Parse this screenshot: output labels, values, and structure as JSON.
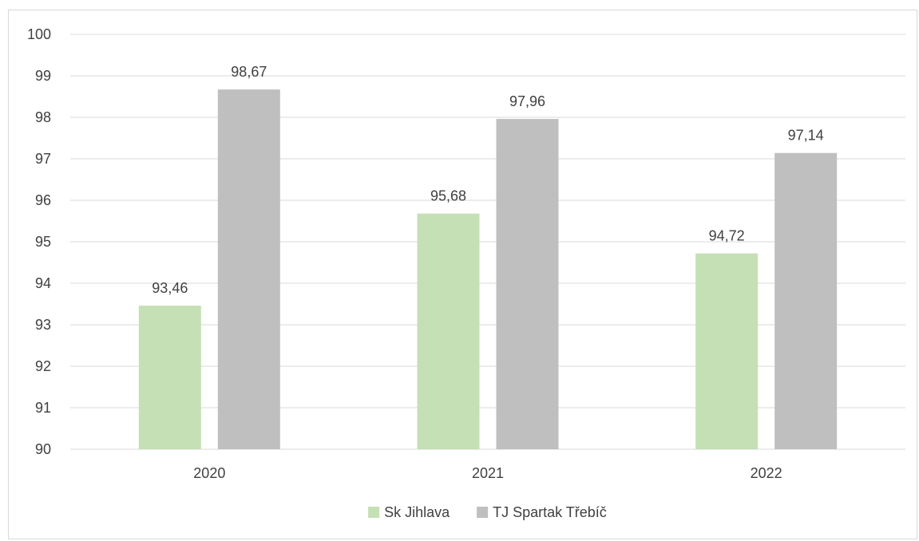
{
  "chart_data": {
    "type": "bar",
    "categories": [
      "2020",
      "2021",
      "2022"
    ],
    "series": [
      {
        "name": "Sk Jihlava",
        "values": [
          93.46,
          95.68,
          94.72
        ],
        "labels": [
          "93,46",
          "95,68",
          "94,72"
        ],
        "color": "#c5e0b4"
      },
      {
        "name": "TJ Spartak Třebíč",
        "values": [
          98.67,
          97.96,
          97.14
        ],
        "labels": [
          "98,67",
          "97,96",
          "97,14"
        ],
        "color": "#bfbfbf"
      }
    ],
    "ylim": [
      90,
      100
    ],
    "yticks": [
      "90",
      "91",
      "92",
      "93",
      "94",
      "95",
      "96",
      "97",
      "98",
      "99",
      "100"
    ],
    "grid": true,
    "gridColor": "#d9d9d9",
    "legend": "bottom",
    "title": "",
    "xlabel": "",
    "ylabel": ""
  }
}
